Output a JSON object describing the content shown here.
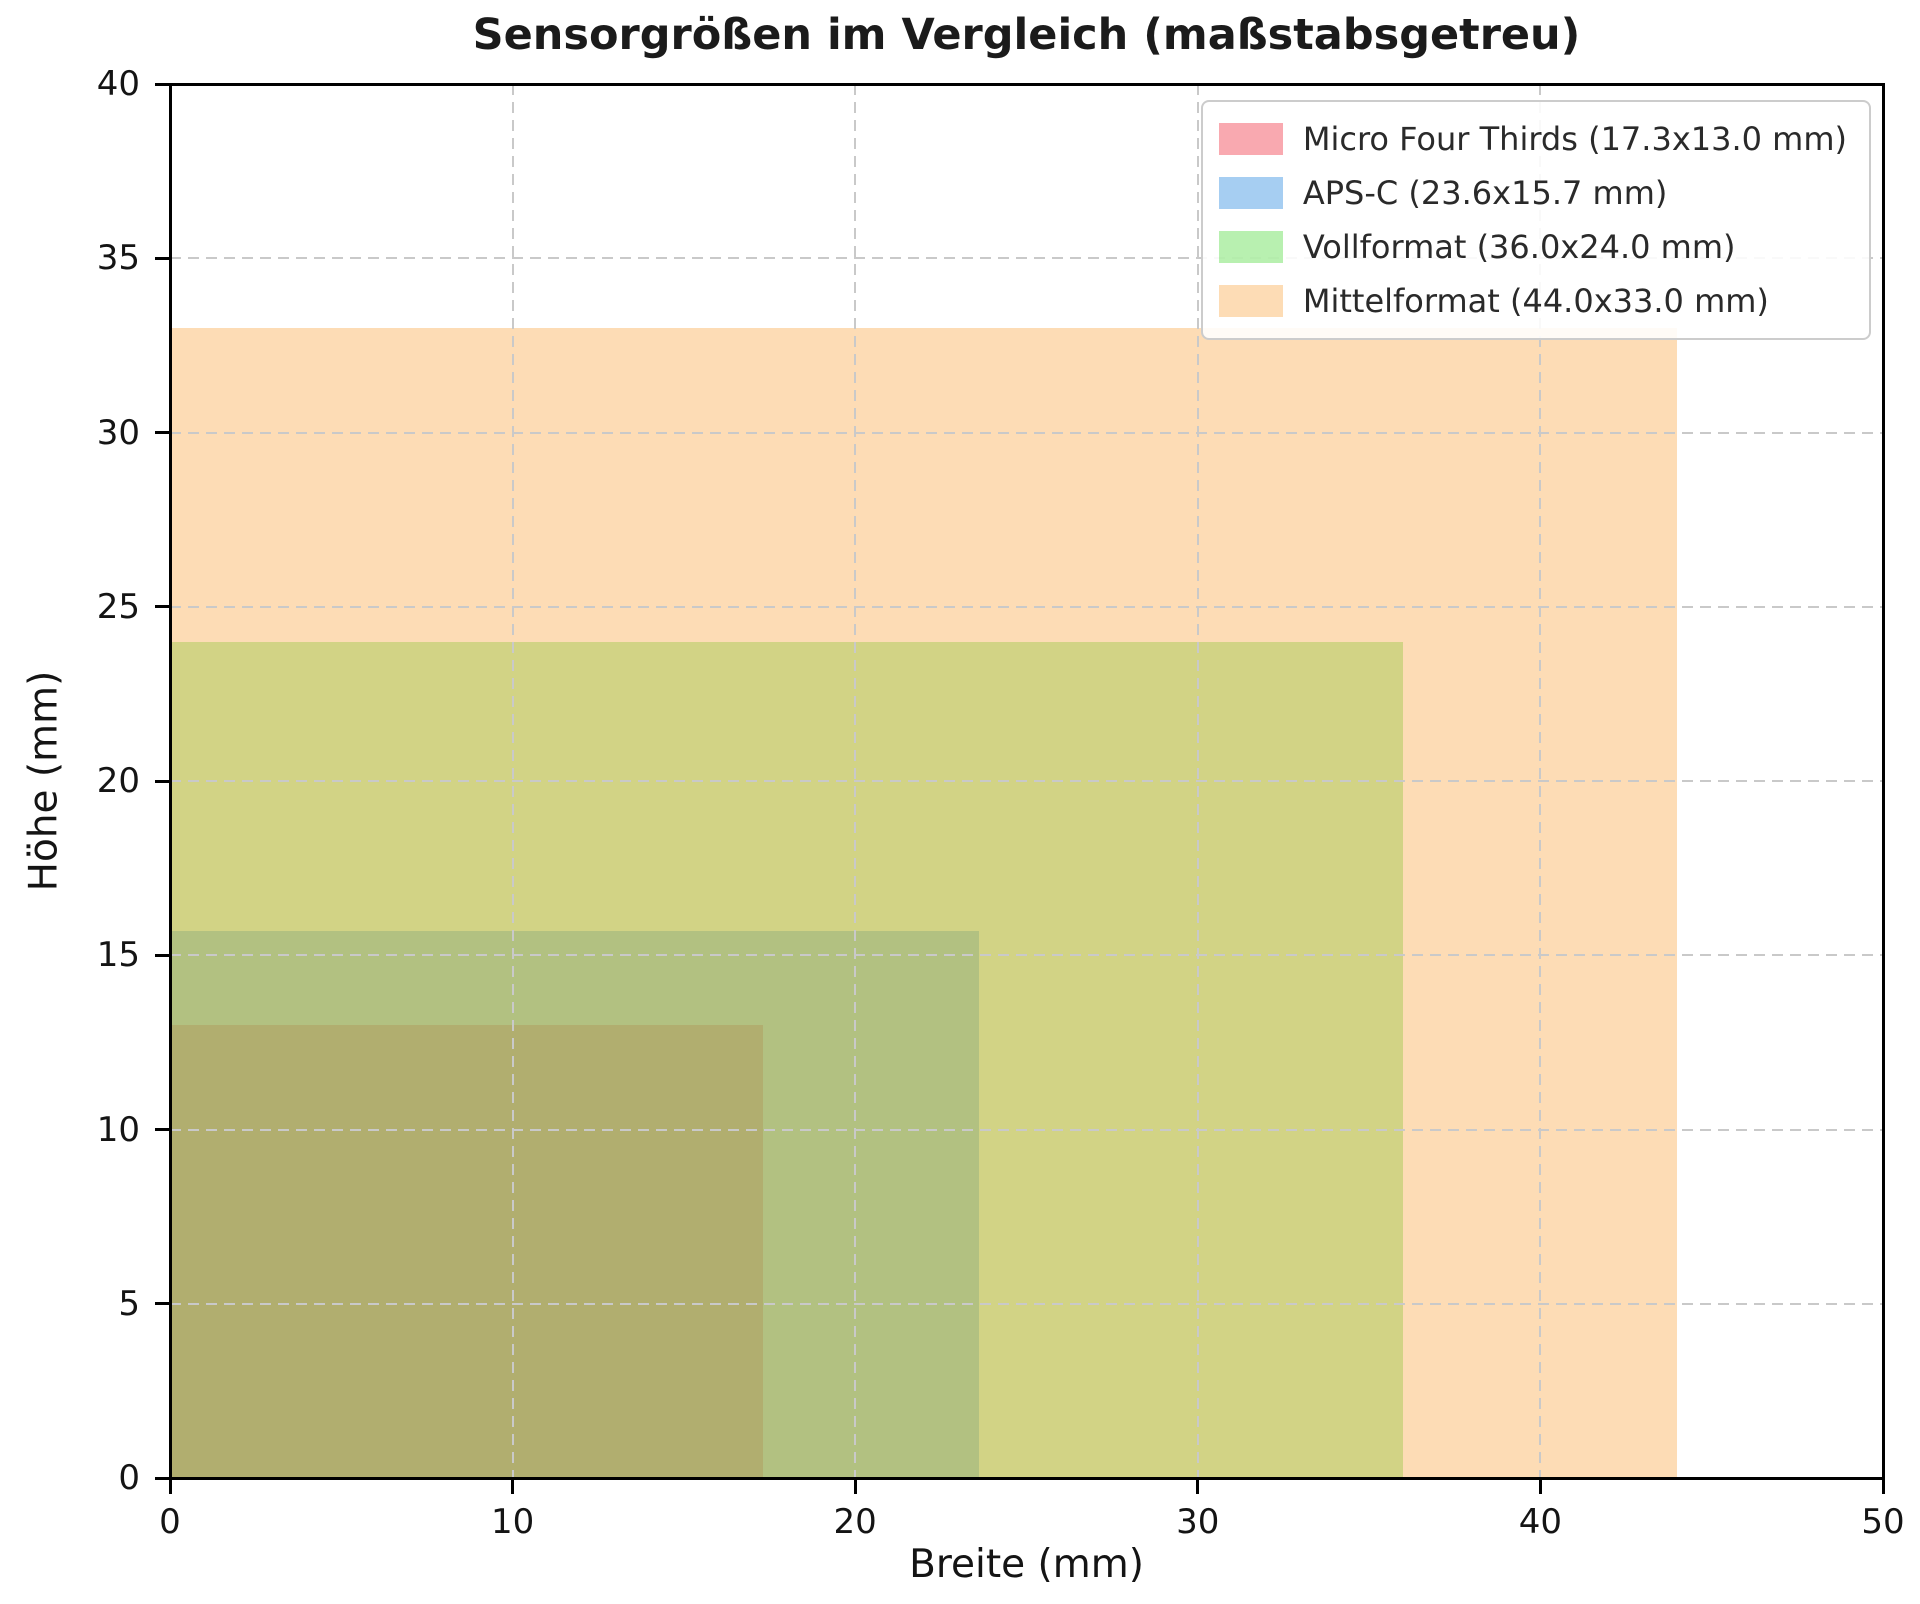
{
  "chart_data": {
    "type": "area",
    "title": "Sensorgrößen im Vergleich (maßstabsgetreu)",
    "xlabel": "Breite (mm)",
    "ylabel": "Höhe (mm)",
    "xlim": [
      0,
      50
    ],
    "ylim": [
      0,
      40
    ],
    "x_ticks": [
      0,
      10,
      20,
      30,
      40,
      50
    ],
    "y_ticks": [
      0,
      5,
      10,
      15,
      20,
      25,
      30,
      35,
      40
    ],
    "grid": true,
    "grid_style": "dashed",
    "legend_position": "upper right",
    "series": [
      {
        "name": "Micro Four Thirds (17.3x13.0 mm)",
        "x": 0,
        "y": 0,
        "width_mm": 17.3,
        "height_mm": 13.0,
        "color": "#F0283A",
        "alpha": 0.4
      },
      {
        "name": "APS-C (23.6x15.7 mm)",
        "x": 0,
        "y": 0,
        "width_mm": 23.6,
        "height_mm": 15.7,
        "color": "#2185DF",
        "alpha": 0.4
      },
      {
        "name": "Vollformat (36.0x24.0 mm)",
        "x": 0,
        "y": 0,
        "width_mm": 36.0,
        "height_mm": 24.0,
        "color": "#4EDA3A",
        "alpha": 0.4
      },
      {
        "name": "Mittelformat (44.0x33.0 mm)",
        "x": 0,
        "y": 0,
        "width_mm": 44.0,
        "height_mm": 33.0,
        "color": "#FAA846",
        "alpha": 0.4
      }
    ]
  }
}
